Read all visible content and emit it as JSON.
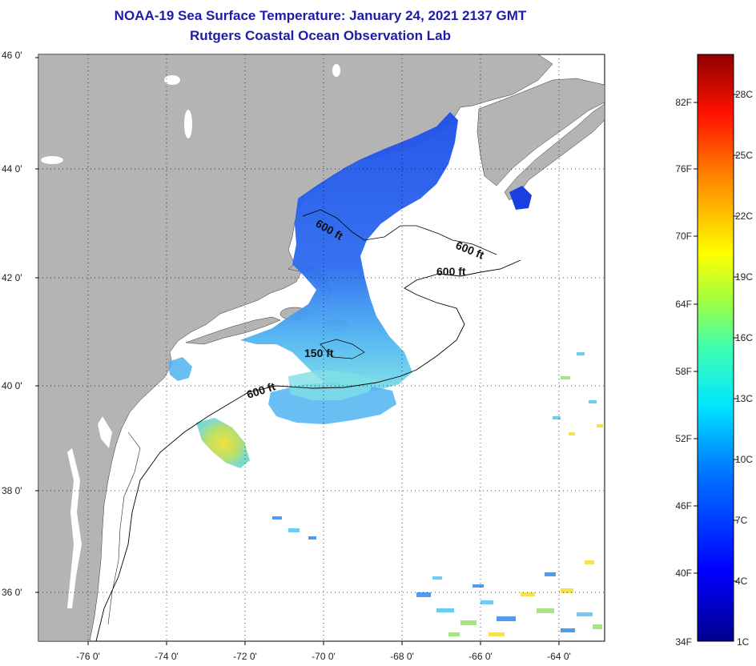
{
  "title": {
    "line1": "NOAA-19 Sea Surface Temperature:  January 24, 2021 2137 GMT",
    "line2": "Rutgers Coastal Ocean Observation Lab"
  },
  "map": {
    "lat_labels": [
      "46 0'",
      "44 0'",
      "42 0'",
      "40 0'",
      "38 0'",
      "36 0'"
    ],
    "lon_labels": [
      "-76 0'",
      "-74 0'",
      "-72 0'",
      "-70 0'",
      "-68 0'",
      "-66 0'",
      "-64 0'"
    ],
    "contour_labels": [
      "600 ft",
      "600 ft",
      "600 ft",
      "150 ft",
      "600 ft"
    ],
    "colors": {
      "land": "#b4b4b4",
      "ocean": "#ffffff",
      "deep_blue": "#1a4fe6",
      "mid_blue": "#3b8ef0",
      "light_blue": "#5bc8f2",
      "cyan": "#6fe2e6",
      "green": "#9be07a",
      "yellow": "#f2e040"
    }
  },
  "colorbar": {
    "fahrenheit": [
      "82F",
      "76F",
      "70F",
      "64F",
      "58F",
      "52F",
      "46F",
      "40F",
      "34F"
    ],
    "celsius": [
      "28C",
      "25C",
      "22C",
      "19C",
      "16C",
      "13C",
      "10C",
      "7C",
      "4C",
      "1C"
    ]
  }
}
